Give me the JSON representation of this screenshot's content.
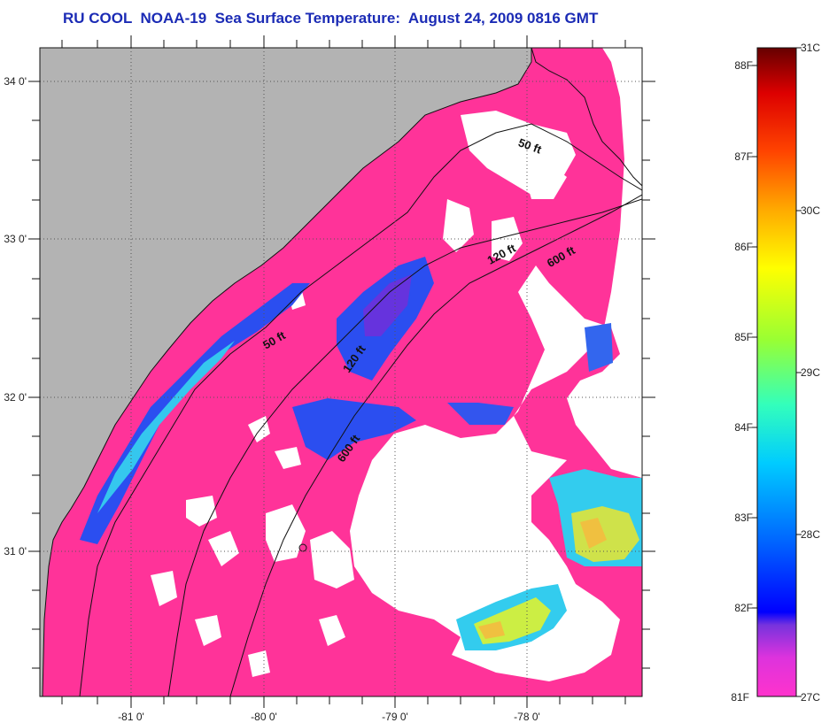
{
  "title": "RU COOL  NOAA-19  Sea Surface Temperature:  August 24, 2009 0816 GMT",
  "map": {
    "lat_ticks": [
      {
        "value": 34,
        "label": "34 0'"
      },
      {
        "value": 33,
        "label": "33 0'"
      },
      {
        "value": 32,
        "label": "32 0'"
      },
      {
        "value": 31,
        "label": "31 0'"
      }
    ],
    "lon_ticks": [
      {
        "value": -81,
        "label": "-81 0'"
      },
      {
        "value": -80,
        "label": "-80 0'"
      },
      {
        "value": -79,
        "label": "-79 0'"
      },
      {
        "value": -78,
        "label": "-78 0'"
      }
    ],
    "contour_labels": [
      "50 ft",
      "120 ft",
      "600 ft",
      "50 ft",
      "120 ft",
      "600 ft"
    ],
    "colors": {
      "land": "#b3b3b3",
      "water_base": "#ff3399",
      "cloud": "#ffffff",
      "cool_blue": "#2255ee",
      "cyan": "#33ccee",
      "warm_yellow": "#eeee44"
    }
  },
  "colorbar": {
    "fahrenheit_labels": [
      "88F",
      "87F",
      "86F",
      "85F",
      "84F",
      "83F",
      "82F",
      "81F"
    ],
    "celsius_labels": [
      "31C",
      "30C",
      "29C",
      "28C",
      "27C"
    ],
    "colors": [
      "#ff33cc",
      "#8833dd",
      "#0000ff",
      "#0088ff",
      "#00ddff",
      "#33ff99",
      "#aaff33",
      "#ffff00",
      "#ffaa00",
      "#ff3300",
      "#dd0000",
      "#660000"
    ]
  }
}
